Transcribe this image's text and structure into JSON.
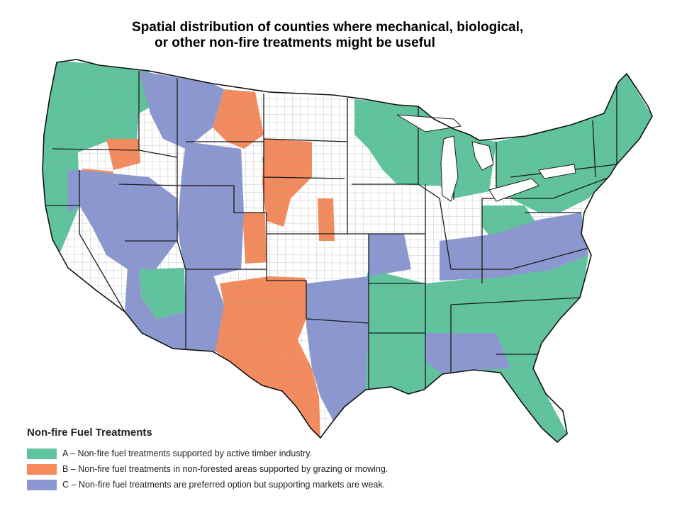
{
  "title": {
    "line1": "Spatial distribution of counties where mechanical, biological,",
    "line2": "or other non-fire treatments might be useful"
  },
  "colors": {
    "A": "#5ec49d",
    "B": "#f58b5c",
    "C": "#8b97d1",
    "none": "#ffffff",
    "border": "#222222"
  },
  "legend": {
    "title": "Non-fire Fuel Treatments",
    "items": [
      {
        "key": "A",
        "label": "A – Non-fire fuel treatments supported by active timber industry."
      },
      {
        "key": "B",
        "label": "B – Non-fire fuel treatments in non-forested areas supported by grazing or mowing."
      },
      {
        "key": "C",
        "label": "C – Non-fire fuel treatments are preferred option but supporting markets are weak."
      }
    ]
  },
  "map": {
    "subject": "Contiguous United States, county-level classification",
    "regions": [
      {
        "area": "pacific-northwest",
        "class": "A"
      },
      {
        "area": "northern-california-coast",
        "class": "A"
      },
      {
        "area": "great-basin",
        "class": "C"
      },
      {
        "area": "central-valley-desert",
        "class": "none"
      },
      {
        "area": "northern-rockies",
        "class": "C"
      },
      {
        "area": "wyoming-colorado",
        "class": "C"
      },
      {
        "area": "northern-great-plains",
        "class": "none"
      },
      {
        "area": "southern-great-plains",
        "class": "B"
      },
      {
        "area": "corn-belt",
        "class": "none"
      },
      {
        "area": "upper-midwest-forests",
        "class": "A"
      },
      {
        "area": "southeast",
        "class": "A"
      },
      {
        "area": "appalachia",
        "class": "C"
      },
      {
        "area": "northeast",
        "class": "A"
      },
      {
        "area": "new-mexico-arizona",
        "class": "C"
      },
      {
        "area": "east-texas-oklahoma",
        "class": "C"
      }
    ]
  }
}
